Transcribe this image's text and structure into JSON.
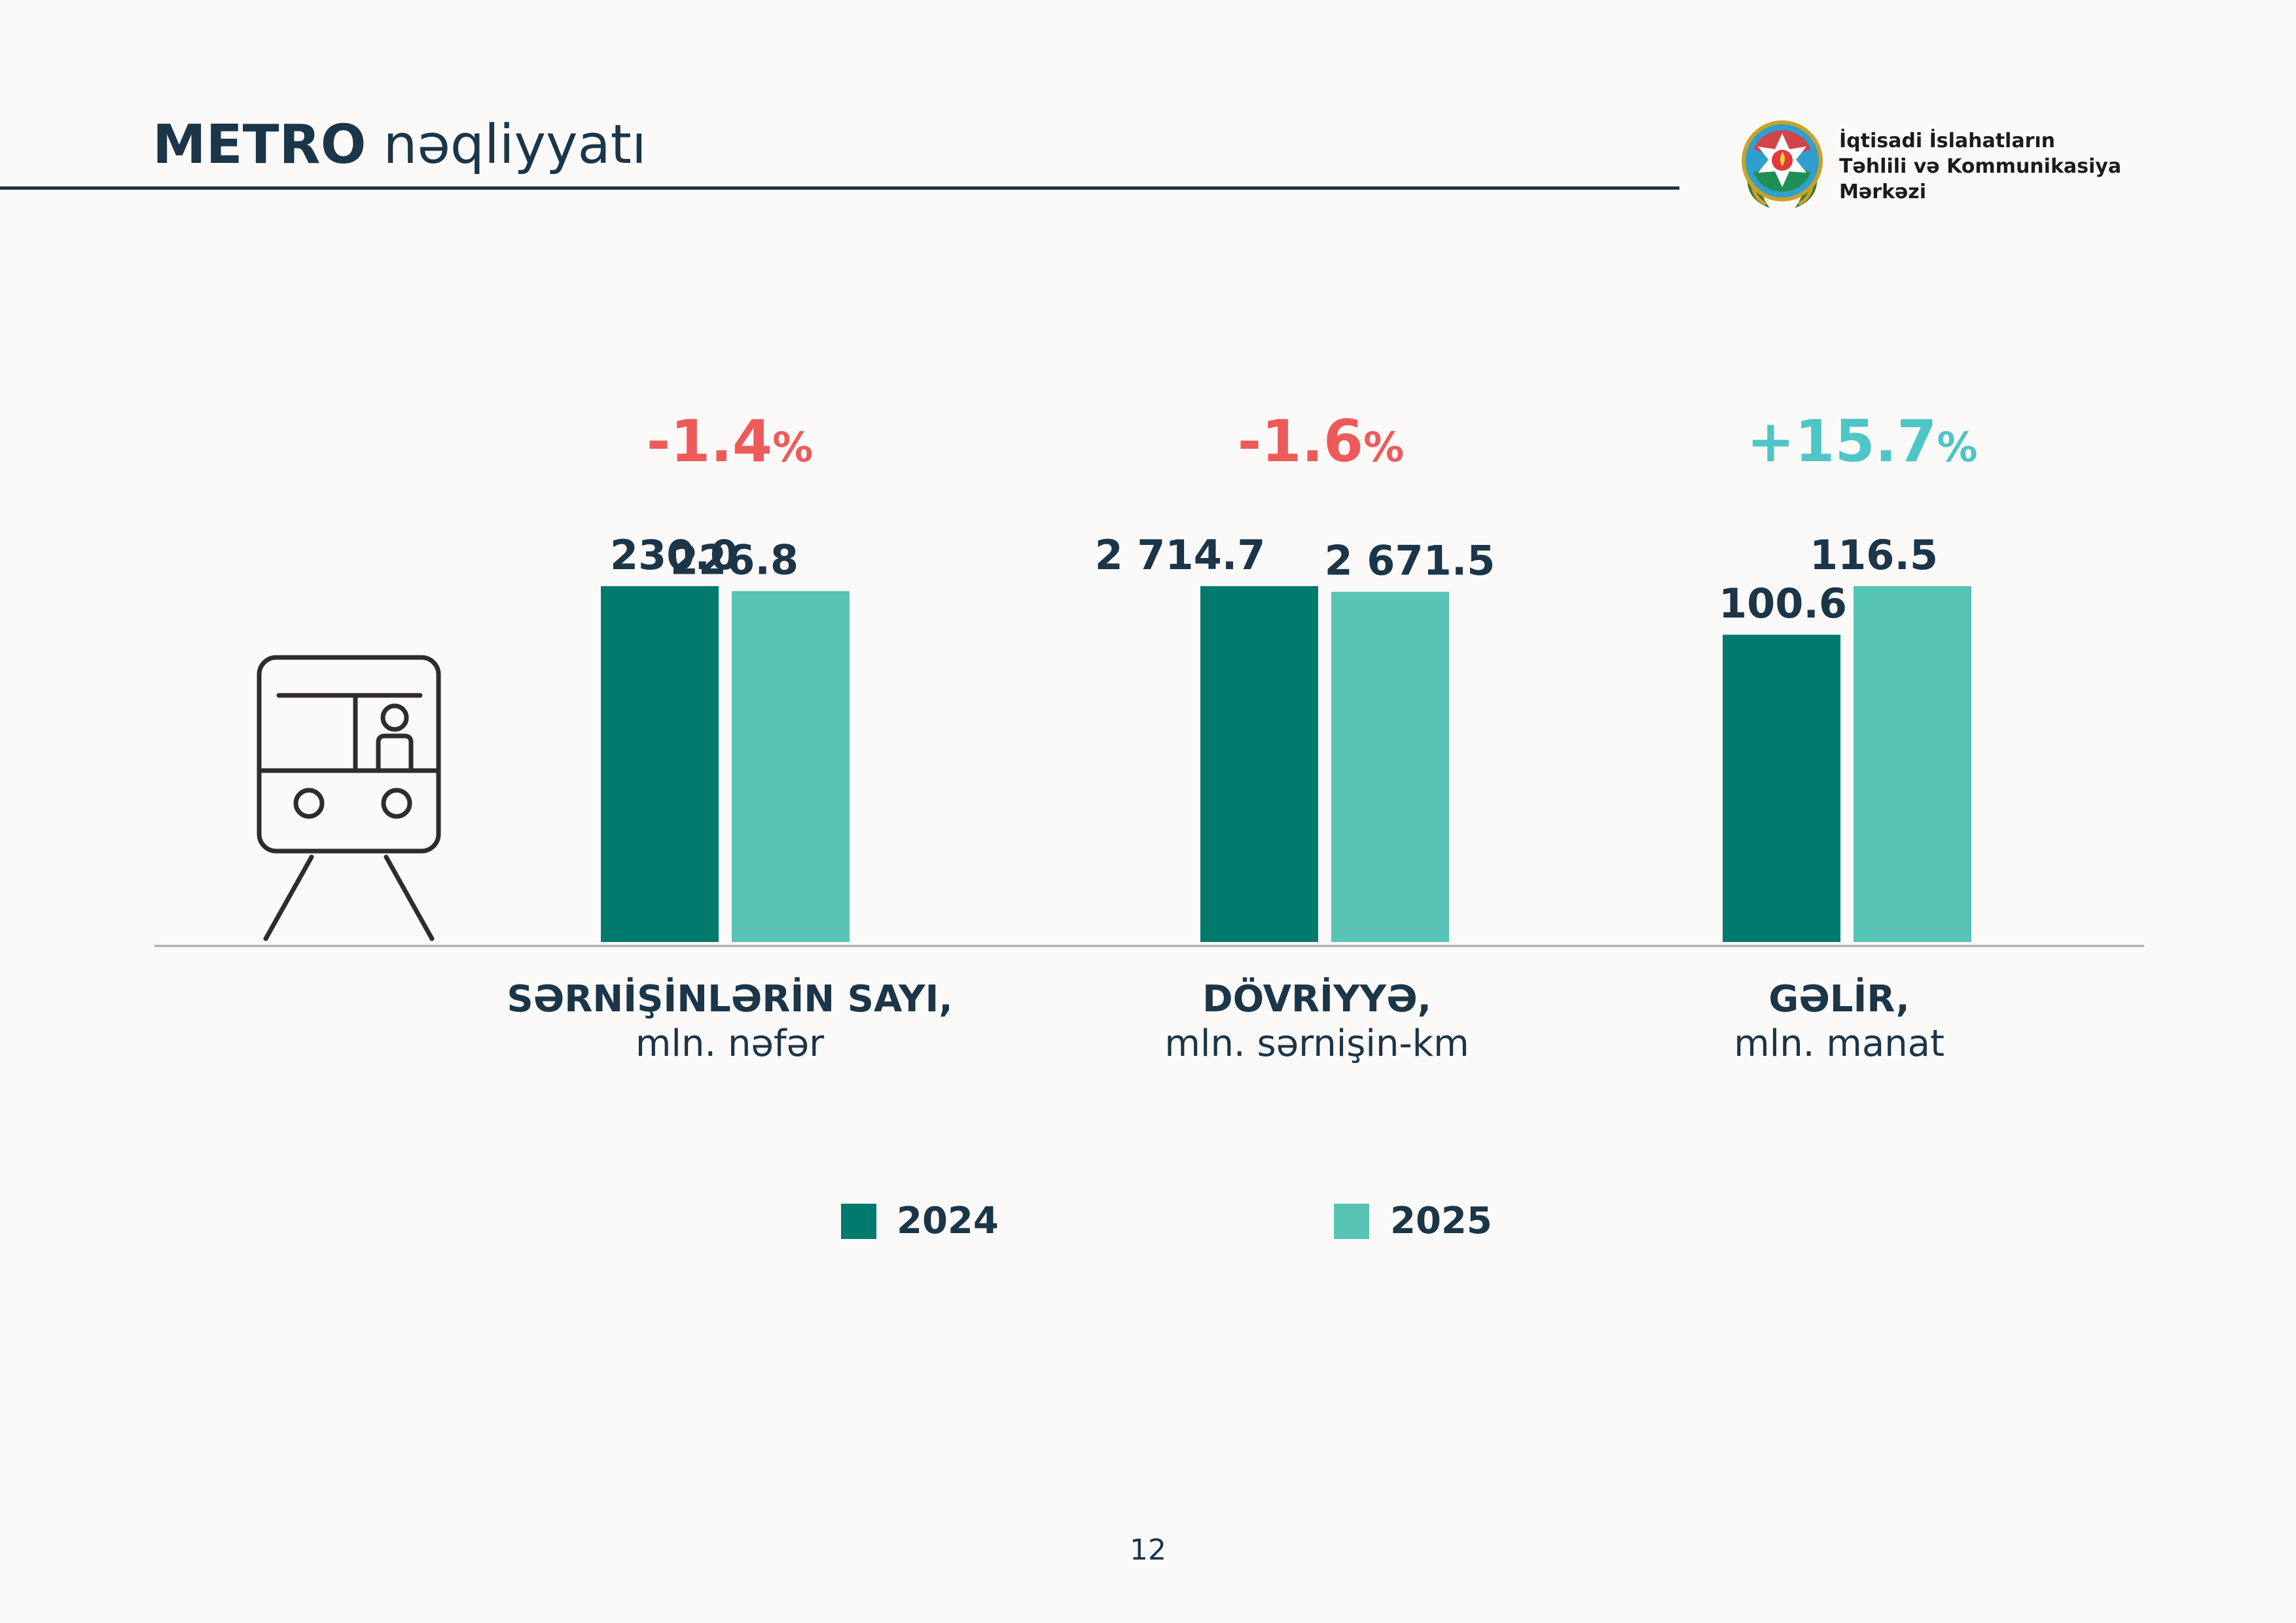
{
  "header": {
    "title_strong": "METRO",
    "title_rest": " nəqliyyatı",
    "org_name_lines": [
      "İqtisadi İslahatların",
      "Təhlili və Kommunikasiya",
      "Mərkəzi"
    ]
  },
  "colors": {
    "series_2024": "#017a6e",
    "series_2025": "#57c4b5",
    "negative_change": "#ee5a5a",
    "positive_change": "#4ec5c7",
    "text_dark": "#1b3549"
  },
  "icons": {
    "logo": "azerbaijan-emblem-icon",
    "transport": "metro-train-icon"
  },
  "chart_data": {
    "type": "bar",
    "legend_position": "bottom-center",
    "grid": false,
    "series": [
      {
        "name": "2024",
        "values": [
          230.0,
          2714.7,
          100.6
        ],
        "labels": [
          "230.0",
          "2 714.7",
          "100.6"
        ]
      },
      {
        "name": "2025",
        "values": [
          226.8,
          2671.5,
          116.5
        ],
        "labels": [
          "226.8",
          "2 671.5",
          "116.5"
        ]
      }
    ],
    "groups": [
      {
        "category": "SƏRNİŞİNLƏRİN SAYI,",
        "unit": "mln. nəfər",
        "change_num": "-1.4",
        "change_pct": "%",
        "direction": "down"
      },
      {
        "category": "DÖVRİYYƏ,",
        "unit": "mln. sərnişin-km",
        "change_num": "-1.6",
        "change_pct": "%",
        "direction": "down"
      },
      {
        "category": "GƏLİR,",
        "unit": "mln. manat",
        "change_num": "+15.7",
        "change_pct": "%",
        "direction": "up"
      }
    ]
  },
  "footer": {
    "page_number": "12"
  }
}
